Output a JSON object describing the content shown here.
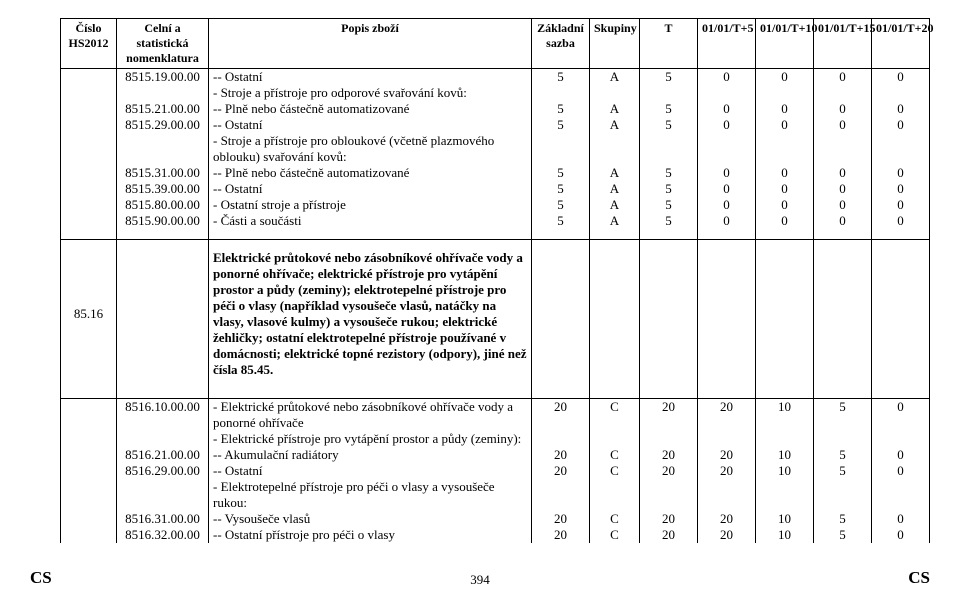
{
  "header": {
    "col_hs": "Číslo\nHS2012",
    "col_code": "Celní a statistická nomenklatura",
    "col_desc": "Popis zboží",
    "col_base": "Základní sazba",
    "col_group": "Skupiny",
    "col_T": "T",
    "col_t5": "01/01/T+5",
    "col_t10": "01/01/T+10",
    "col_t15": "01/01/T+15",
    "col_t20": "01/01/T+20"
  },
  "section1": [
    {
      "code": "8515.19.00.00",
      "desc": "-- Ostatní",
      "base": "5",
      "grp": "A",
      "T": "5",
      "t5": "0",
      "t10": "0",
      "t15": "0",
      "t20": "0"
    },
    {
      "desc": "- Stroje a přístroje pro odporové svařování kovů:",
      "section": true
    },
    {
      "code": "8515.21.00.00",
      "desc": "-- Plně nebo částečně automatizované",
      "base": "5",
      "grp": "A",
      "T": "5",
      "t5": "0",
      "t10": "0",
      "t15": "0",
      "t20": "0"
    },
    {
      "code": "8515.29.00.00",
      "desc": "-- Ostatní",
      "base": "5",
      "grp": "A",
      "T": "5",
      "t5": "0",
      "t10": "0",
      "t15": "0",
      "t20": "0"
    },
    {
      "desc": "- Stroje a přístroje pro obloukové (včetně plazmového oblouku) svařování kovů:",
      "section_noindent": true
    },
    {
      "code": "8515.31.00.00",
      "desc": "-- Plně nebo částečně automatizované",
      "base": "5",
      "grp": "A",
      "T": "5",
      "t5": "0",
      "t10": "0",
      "t15": "0",
      "t20": "0"
    },
    {
      "code": "8515.39.00.00",
      "desc": "-- Ostatní",
      "base": "5",
      "grp": "A",
      "T": "5",
      "t5": "0",
      "t10": "0",
      "t15": "0",
      "t20": "0"
    },
    {
      "code": "8515.80.00.00",
      "desc": "- Ostatní stroje a přístroje",
      "base": "5",
      "grp": "A",
      "T": "5",
      "t5": "0",
      "t10": "0",
      "t15": "0",
      "t20": "0"
    },
    {
      "code": "8515.90.00.00",
      "desc": "- Části a součásti",
      "base": "5",
      "grp": "A",
      "T": "5",
      "t5": "0",
      "t10": "0",
      "t15": "0",
      "t20": "0"
    }
  ],
  "heading8516": {
    "hs": "85.16",
    "text": "Elektrické průtokové nebo zásobníkové ohřívače vody a ponorné ohřívače; elektrické přístroje pro vytápění prostor a půdy (zeminy); elektrotepelné přístroje pro péči o vlasy (například vysoušeče vlasů, natáčky na vlasy, vlasové kulmy) a vysoušeče rukou; elektrické žehličky; ostatní elektrotepelné přístroje používané v domácnosti; elektrické topné rezistory (odpory), jiné než čísla 85.45."
  },
  "section2": [
    {
      "code": "8516.10.00.00",
      "desc": "- Elektrické průtokové nebo zásobníkové ohřívače vody a ponorné ohřívače",
      "base": "20",
      "grp": "C",
      "T": "20",
      "t5": "20",
      "t10": "10",
      "t15": "5",
      "t20": "0"
    },
    {
      "desc": "- Elektrické přístroje pro vytápění prostor a půdy (zeminy):",
      "section": true
    },
    {
      "code": "8516.21.00.00",
      "desc": "-- Akumulační radiátory",
      "base": "20",
      "grp": "C",
      "T": "20",
      "t5": "20",
      "t10": "10",
      "t15": "5",
      "t20": "0"
    },
    {
      "code": "8516.29.00.00",
      "desc": "-- Ostatní",
      "base": "20",
      "grp": "C",
      "T": "20",
      "t5": "20",
      "t10": "10",
      "t15": "5",
      "t20": "0"
    },
    {
      "desc": "- Elektrotepelné přístroje pro péči o vlasy a vysoušeče rukou:",
      "section": true
    },
    {
      "code": "8516.31.00.00",
      "desc": "-- Vysoušeče vlasů",
      "base": "20",
      "grp": "C",
      "T": "20",
      "t5": "20",
      "t10": "10",
      "t15": "5",
      "t20": "0"
    },
    {
      "code": "8516.32.00.00",
      "desc": "-- Ostatní přístroje pro péči o vlasy",
      "base": "20",
      "grp": "C",
      "T": "20",
      "t5": "20",
      "t10": "10",
      "t15": "5",
      "t20": "0"
    }
  ],
  "footer": {
    "left": "CS",
    "page": "394",
    "right": "CS"
  }
}
